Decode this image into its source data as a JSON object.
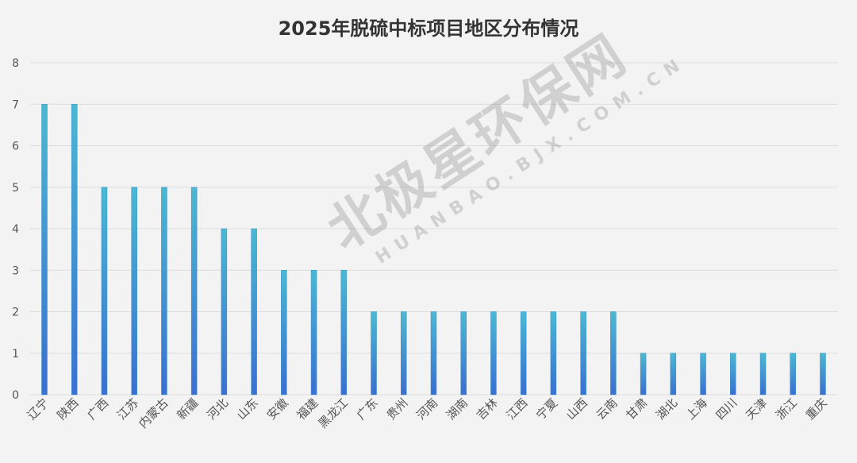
{
  "chart_data": {
    "type": "bar",
    "title": "2025年脱硫中标项目地区分布情况",
    "xlabel": "",
    "ylabel": "",
    "ylim": [
      0,
      8
    ],
    "yticks": [
      "0",
      "1",
      "2",
      "3",
      "4",
      "5",
      "6",
      "7",
      "8"
    ],
    "grid": true,
    "categories": [
      "辽宁",
      "陕西",
      "广西",
      "江苏",
      "内蒙古",
      "新疆",
      "河北",
      "山东",
      "安徽",
      "福建",
      "黑龙江",
      "广东",
      "贵州",
      "河南",
      "湖南",
      "吉林",
      "江西",
      "宁夏",
      "山西",
      "云南",
      "甘肃",
      "湖北",
      "上海",
      "四川",
      "天津",
      "浙江",
      "重庆"
    ],
    "values": [
      7,
      7,
      5,
      5,
      5,
      5,
      4,
      4,
      3,
      3,
      3,
      2,
      2,
      2,
      2,
      2,
      2,
      2,
      2,
      2,
      1,
      1,
      1,
      1,
      1,
      1,
      1
    ],
    "colors": {
      "bar_top": "#4ab9d2",
      "bar_bottom": "#3a6fd2",
      "grid": "#dcdcdc",
      "text": "#555555"
    }
  },
  "watermark": {
    "name": "北极星环保网",
    "url": "HUANBAO.BJX.COM.CN"
  }
}
